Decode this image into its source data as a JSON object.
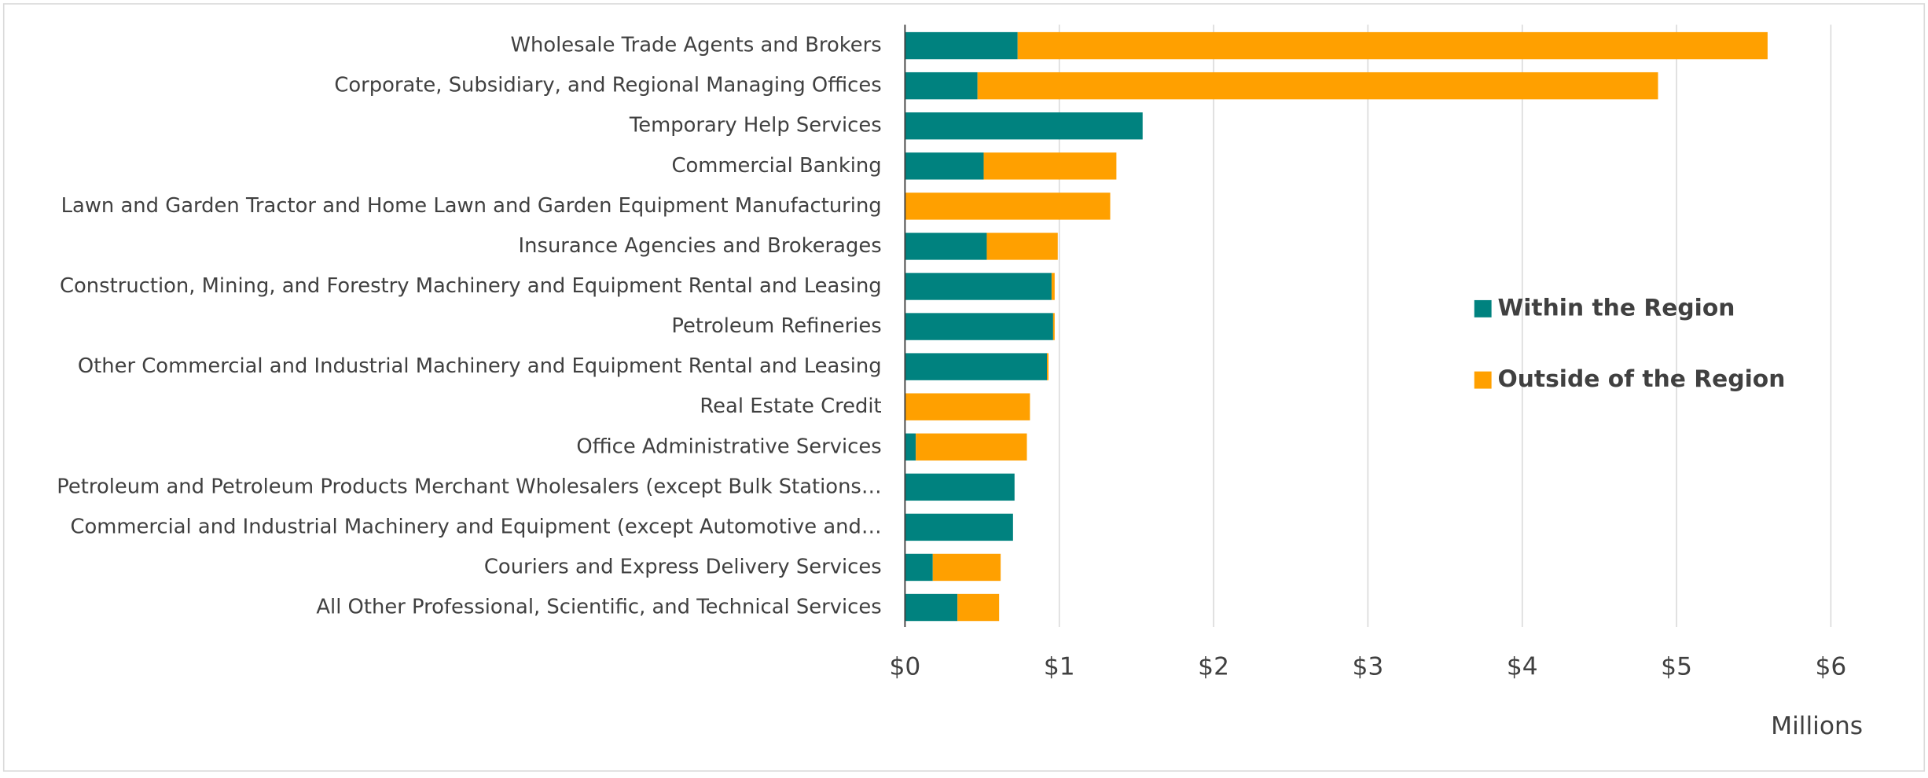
{
  "chart_data": {
    "type": "stacked_barh",
    "categories": [
      "Wholesale Trade Agents and Brokers",
      "Corporate, Subsidiary, and Regional Managing Offices",
      "Temporary Help Services",
      "Commercial Banking",
      "Lawn and Garden Tractor and Home Lawn and Garden Equipment Manufacturing",
      "Insurance Agencies and Brokerages",
      "Construction, Mining, and Forestry Machinery and Equipment Rental and Leasing",
      "Petroleum Refineries",
      "Other Commercial and Industrial Machinery and Equipment Rental and Leasing",
      "Real Estate Credit",
      "Office Administrative Services",
      "Petroleum and Petroleum Products Merchant Wholesalers (except Bulk Stations…",
      "Commercial and Industrial Machinery and Equipment (except Automotive and…",
      "Couriers and Express Delivery Services",
      "All Other Professional, Scientific, and Technical Services"
    ],
    "series": [
      {
        "name": "Within the Region",
        "color": "#00827f",
        "values": [
          0.73,
          0.47,
          1.54,
          0.51,
          0,
          0.53,
          0.95,
          0.96,
          0.92,
          0,
          0.07,
          0.71,
          0.7,
          0.18,
          0.34
        ]
      },
      {
        "name": "Outside of the Region",
        "color": "#ffa000",
        "values": [
          4.86,
          4.41,
          0,
          0.86,
          1.33,
          0.46,
          0.02,
          0.01,
          0.01,
          0.81,
          0.72,
          0,
          0,
          0.44,
          0.27
        ]
      }
    ],
    "xlim": [
      0,
      6
    ],
    "xticks": [
      {
        "value": 0,
        "label": "$0"
      },
      {
        "value": 1,
        "label": "$1"
      },
      {
        "value": 2,
        "label": "$2"
      },
      {
        "value": 3,
        "label": "$3"
      },
      {
        "value": 4,
        "label": "$4"
      },
      {
        "value": 5,
        "label": "$5"
      },
      {
        "value": 6,
        "label": "$6"
      }
    ],
    "x_label": "Millions",
    "grid": true,
    "legend": "right"
  }
}
